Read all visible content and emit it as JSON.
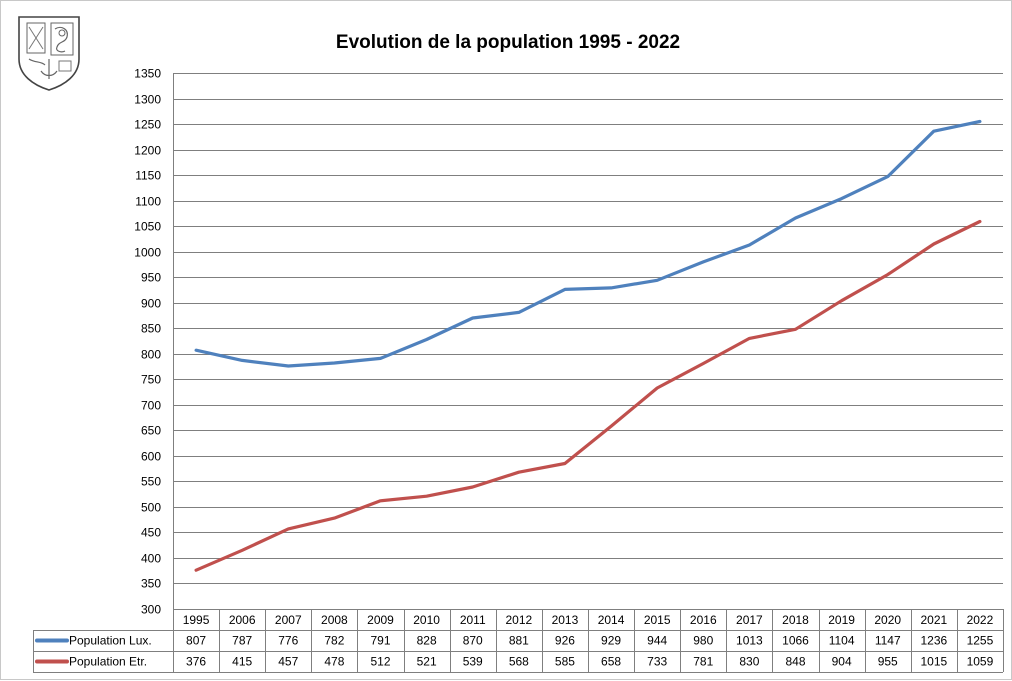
{
  "chart_data": {
    "type": "line",
    "title": "Evolution de la population 1995 - 2022",
    "categories": [
      "1995",
      "2006",
      "2007",
      "2008",
      "2009",
      "2010",
      "2011",
      "2012",
      "2013",
      "2014",
      "2015",
      "2016",
      "2017",
      "2018",
      "2019",
      "2020",
      "2021",
      "2022"
    ],
    "series": [
      {
        "name": "Population Lux.",
        "color": "#4f81bd",
        "values": [
          807,
          787,
          776,
          782,
          791,
          828,
          870,
          881,
          926,
          929,
          944,
          980,
          1013,
          1066,
          1104,
          1147,
          1236,
          1255
        ]
      },
      {
        "name": "Population Etr.",
        "color": "#c0504d",
        "values": [
          376,
          415,
          457,
          478,
          512,
          521,
          539,
          568,
          585,
          658,
          733,
          781,
          830,
          848,
          904,
          955,
          1015,
          1059
        ]
      }
    ],
    "ylim": [
      300,
      1350
    ],
    "y_ticks": [
      300,
      350,
      400,
      450,
      500,
      550,
      600,
      650,
      700,
      750,
      800,
      850,
      900,
      950,
      1000,
      1050,
      1100,
      1150,
      1200,
      1250,
      1300,
      1350
    ],
    "grid": true,
    "data_table": true
  },
  "logo": {
    "name": "municipal-coat-of-arms"
  }
}
